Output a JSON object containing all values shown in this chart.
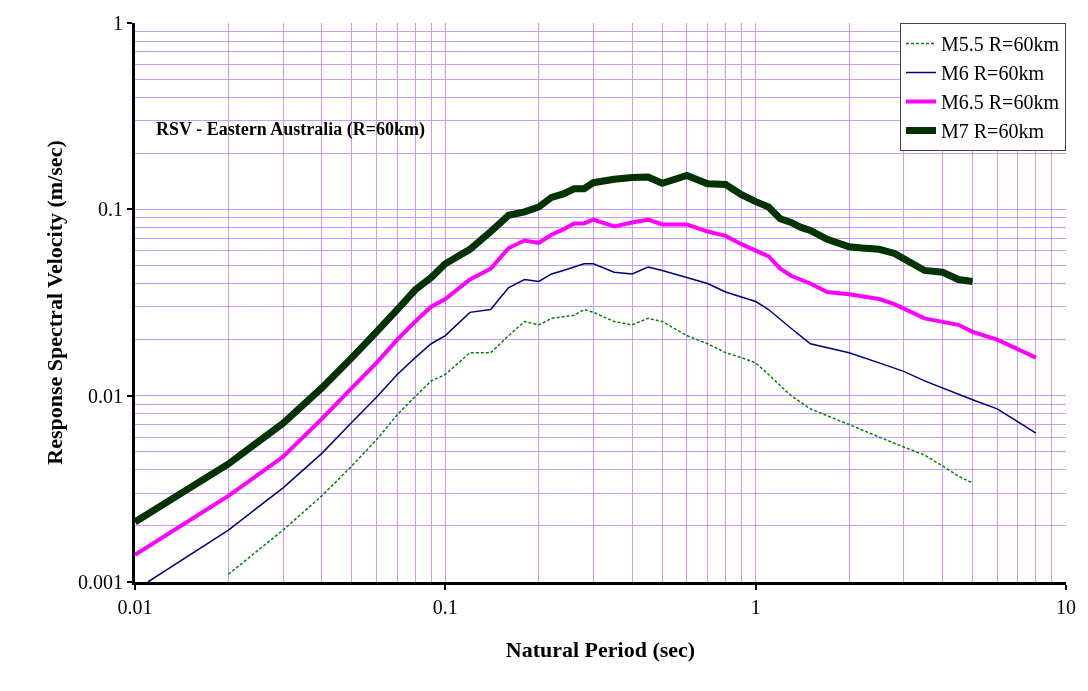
{
  "chart_data": {
    "type": "line",
    "title": "RSV - Eastern Australia (R=60km)",
    "xlabel": "Natural Period (sec)",
    "ylabel": "Response Spectral Velocity (m/sec)",
    "log": "xy",
    "grid": true,
    "legend": "top right",
    "xlim": [
      0.01,
      10
    ],
    "ylim": [
      0.001,
      1
    ],
    "xticks": [
      0.01,
      0.1,
      1,
      10
    ],
    "yticks": [
      0.001,
      0.01,
      0.1,
      1
    ],
    "series": [
      {
        "name": "M5.5 R=60km",
        "color": "#008000",
        "line_style": "dotted",
        "x": [
          0.02,
          0.03,
          0.04,
          0.05,
          0.06,
          0.07,
          0.08,
          0.09,
          0.1,
          0.12,
          0.14,
          0.16,
          0.18,
          0.2,
          0.22,
          0.26,
          0.28,
          0.3,
          0.35,
          0.4,
          0.45,
          0.5,
          0.6,
          0.7,
          0.8,
          0.9,
          1.0,
          1.1,
          1.3,
          1.5,
          1.7,
          2.0,
          2.5,
          3,
          3.5,
          4,
          4.5,
          5
        ],
        "values": [
          0.0011,
          0.0019,
          0.0029,
          0.0042,
          0.0058,
          0.0079,
          0.0099,
          0.012,
          0.013,
          0.017,
          0.017,
          0.021,
          0.025,
          0.024,
          0.026,
          0.027,
          0.029,
          0.028,
          0.025,
          0.024,
          0.026,
          0.025,
          0.021,
          0.019,
          0.017,
          0.016,
          0.015,
          0.013,
          0.01,
          0.0085,
          0.0078,
          0.007,
          0.006,
          0.0053,
          0.0048,
          0.0042,
          0.0037,
          0.0034
        ]
      },
      {
        "name": "M6 R=60km",
        "color": "#000080",
        "line_style": "solid",
        "x": [
          0.011,
          0.02,
          0.03,
          0.04,
          0.05,
          0.06,
          0.07,
          0.08,
          0.09,
          0.1,
          0.12,
          0.14,
          0.16,
          0.18,
          0.2,
          0.22,
          0.24,
          0.28,
          0.3,
          0.35,
          0.4,
          0.45,
          0.5,
          0.7,
          0.8,
          1.0,
          1.1,
          1.3,
          1.5,
          2.0,
          2.5,
          3,
          3.5,
          5,
          6,
          8
        ],
        "values": [
          0.001,
          0.0019,
          0.0032,
          0.0049,
          0.0072,
          0.0098,
          0.013,
          0.016,
          0.019,
          0.021,
          0.028,
          0.029,
          0.038,
          0.042,
          0.041,
          0.045,
          0.047,
          0.051,
          0.051,
          0.046,
          0.045,
          0.049,
          0.047,
          0.04,
          0.036,
          0.032,
          0.029,
          0.023,
          0.019,
          0.017,
          0.015,
          0.0135,
          0.012,
          0.0095,
          0.0085,
          0.0063
        ]
      },
      {
        "name": "M6.5 R=60km",
        "color": "#ff00ff",
        "line_style": "solid",
        "x": [
          0.01,
          0.02,
          0.03,
          0.04,
          0.05,
          0.06,
          0.07,
          0.08,
          0.09,
          0.1,
          0.12,
          0.14,
          0.16,
          0.18,
          0.2,
          0.22,
          0.24,
          0.26,
          0.28,
          0.3,
          0.35,
          0.4,
          0.45,
          0.5,
          0.6,
          0.7,
          0.8,
          0.9,
          1.0,
          1.1,
          1.2,
          1.3,
          1.5,
          1.7,
          2.0,
          2.5,
          2.8,
          3.5,
          4.5,
          5,
          6,
          8
        ],
        "values": [
          0.0014,
          0.0029,
          0.0047,
          0.0075,
          0.011,
          0.015,
          0.02,
          0.025,
          0.03,
          0.033,
          0.042,
          0.048,
          0.062,
          0.068,
          0.066,
          0.073,
          0.078,
          0.084,
          0.084,
          0.088,
          0.081,
          0.085,
          0.088,
          0.083,
          0.083,
          0.076,
          0.072,
          0.065,
          0.06,
          0.056,
          0.048,
          0.044,
          0.04,
          0.036,
          0.035,
          0.033,
          0.031,
          0.026,
          0.024,
          0.022,
          0.02,
          0.016
        ]
      },
      {
        "name": "M7 R=60km",
        "color": "#003300",
        "line_style": "solid",
        "x": [
          0.01,
          0.02,
          0.03,
          0.04,
          0.05,
          0.06,
          0.07,
          0.08,
          0.09,
          0.1,
          0.12,
          0.14,
          0.16,
          0.18,
          0.2,
          0.22,
          0.24,
          0.26,
          0.28,
          0.3,
          0.35,
          0.4,
          0.45,
          0.5,
          0.6,
          0.7,
          0.8,
          0.9,
          1.0,
          1.1,
          1.2,
          1.3,
          1.4,
          1.5,
          1.7,
          2.0,
          2.2,
          2.5,
          2.8,
          3.5,
          4,
          4.5,
          5
        ],
        "values": [
          0.0021,
          0.0043,
          0.0071,
          0.011,
          0.016,
          0.022,
          0.029,
          0.037,
          0.043,
          0.051,
          0.061,
          0.076,
          0.093,
          0.097,
          0.103,
          0.116,
          0.121,
          0.129,
          0.129,
          0.139,
          0.145,
          0.148,
          0.149,
          0.138,
          0.152,
          0.137,
          0.136,
          0.12,
          0.11,
          0.103,
          0.089,
          0.085,
          0.08,
          0.077,
          0.069,
          0.063,
          0.062,
          0.061,
          0.058,
          0.047,
          0.046,
          0.042,
          0.041
        ]
      }
    ]
  }
}
